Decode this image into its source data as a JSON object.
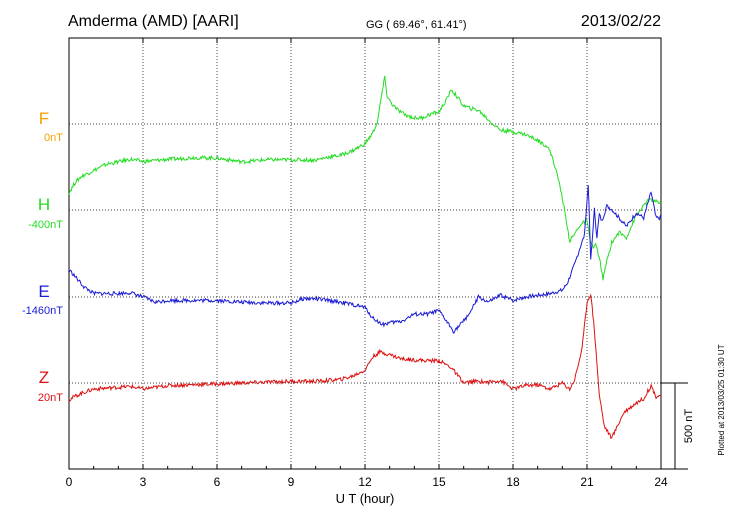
{
  "header": {
    "station": "Amderma (AMD)  [AARI]",
    "coords": "GG ( 69.46°,  61.41°)",
    "date": "2013/02/22"
  },
  "footer": {
    "plotted_at": "Plotted at 2013/03/25 01:30 UT"
  },
  "chart_data": {
    "type": "line",
    "title": "Amderma (AMD)  [AARI]",
    "xlabel": "U T (hour)",
    "xlim": [
      0,
      24
    ],
    "xticks": [
      0,
      3,
      6,
      9,
      12,
      15,
      18,
      21,
      24
    ],
    "grid": "dotted",
    "scale_bar": {
      "label": "500 nT",
      "value_nT": 500
    },
    "series": [
      {
        "name": "F",
        "offset_label": "0nT",
        "color": "#f5a000",
        "x": [],
        "y": []
      },
      {
        "name": "H",
        "offset_label": "-400nT",
        "color": "#22dd22",
        "x": [
          0,
          0.25,
          0.5,
          1,
          1.5,
          2,
          2.5,
          3,
          3.5,
          4,
          4.5,
          5,
          6,
          7,
          8,
          9,
          10,
          10.5,
          11,
          11.5,
          12,
          12.3,
          12.5,
          12.7,
          12.8,
          12.9,
          13.1,
          13.3,
          13.6,
          14,
          14.3,
          14.7,
          15,
          15.3,
          15.5,
          15.8,
          16,
          16.3,
          16.6,
          16.9,
          17.1,
          17.5,
          18,
          18.5,
          19,
          19.4,
          19.6,
          19.9,
          20.1,
          20.3,
          20.5,
          20.7,
          21,
          21.1,
          21.25,
          21.35,
          21.5,
          21.65,
          21.8,
          22,
          22.3,
          22.6,
          23,
          23.5,
          24
        ],
        "y": [
          -300,
          -240,
          -205,
          -170,
          -135,
          -120,
          -105,
          -118,
          -112,
          -105,
          -102,
          -95,
          -98,
          -120,
          -108,
          -108,
          -110,
          -92,
          -82,
          -55,
          -15,
          45,
          110,
          290,
          370,
          260,
          215,
          185,
          155,
          135,
          135,
          160,
          170,
          240,
          300,
          245,
          205,
          190,
          180,
          140,
          110,
          65,
          55,
          40,
          5,
          -30,
          -95,
          -255,
          -410,
          -580,
          -540,
          -490,
          -460,
          -560,
          -620,
          -600,
          -680,
          -800,
          -700,
          -590,
          -530,
          -560,
          -430,
          -340,
          -360
        ]
      },
      {
        "name": "E",
        "offset_label": "-1460nT",
        "color": "#1a1ad6",
        "x": [
          0,
          0.3,
          0.6,
          1,
          1.5,
          2,
          2.5,
          3,
          3.5,
          4,
          5,
          6,
          7,
          8,
          9,
          9.5,
          10,
          11,
          12,
          12.3,
          12.7,
          13,
          13.5,
          14,
          14.5,
          15,
          15.3,
          15.6,
          16,
          16.3,
          16.6,
          17,
          17.5,
          18,
          18.5,
          19,
          19.5,
          20,
          20.2,
          20.5,
          20.7,
          20.9,
          21.05,
          21.15,
          21.3,
          21.4,
          21.5,
          21.6,
          21.8,
          22,
          22.3,
          22.6,
          23,
          23.3,
          23.6,
          23.8,
          24
        ],
        "y": [
          -1300,
          -1350,
          -1400,
          -1440,
          -1440,
          -1440,
          -1435,
          -1460,
          -1490,
          -1480,
          -1480,
          -1480,
          -1490,
          -1495,
          -1495,
          -1470,
          -1470,
          -1490,
          -1520,
          -1580,
          -1620,
          -1610,
          -1600,
          -1560,
          -1560,
          -1540,
          -1600,
          -1660,
          -1600,
          -1540,
          -1460,
          -1490,
          -1450,
          -1480,
          -1460,
          -1450,
          -1440,
          -1420,
          -1380,
          -1270,
          -1180,
          -1100,
          -800,
          -1250,
          -950,
          -1110,
          -980,
          -1020,
          -930,
          -950,
          -1000,
          -1050,
          -970,
          -1000,
          -850,
          -1000,
          -1000
        ]
      },
      {
        "name": "Z",
        "offset_label": "20nT",
        "color": "#dd1111",
        "x": [
          0,
          0.2,
          0.5,
          1,
          1.5,
          2,
          2.5,
          3,
          3.5,
          4,
          5,
          6,
          7,
          8,
          9,
          10,
          11,
          11.5,
          12,
          12.3,
          12.6,
          13,
          13.5,
          14,
          14.5,
          15,
          15.5,
          16,
          16.5,
          17,
          17.5,
          18,
          18.5,
          19,
          19.5,
          20,
          20.3,
          20.5,
          20.8,
          21,
          21.15,
          21.3,
          21.5,
          21.7,
          22,
          22.5,
          23,
          23.3,
          23.6,
          23.8,
          24
        ],
        "y": [
          -80,
          -60,
          -40,
          -15,
          -10,
          -5,
          0,
          -15,
          -5,
          5,
          10,
          15,
          20,
          25,
          30,
          30,
          40,
          60,
          95,
          170,
          200,
          185,
          160,
          155,
          150,
          150,
          110,
          20,
          30,
          25,
          35,
          -15,
          5,
          10,
          -15,
          20,
          -15,
          40,
          220,
          490,
          540,
          330,
          -50,
          -230,
          -300,
          -150,
          -95,
          -70,
          5,
          -60,
          -50
        ]
      }
    ]
  }
}
